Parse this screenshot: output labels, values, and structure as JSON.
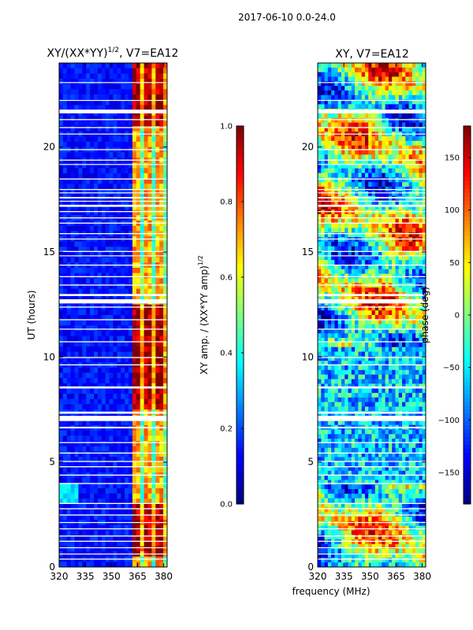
{
  "suptitle": "2017-06-10 0.0-24.0",
  "xlabel_shared": "frequency (MHz)",
  "colors": {
    "jet": [
      "#00007f",
      "#0000ff",
      "#007fff",
      "#00ffff",
      "#7fff7f",
      "#ffff00",
      "#ff7f00",
      "#ff0000",
      "#7f0000"
    ],
    "gap": "#ffffff",
    "axis": "#000000"
  },
  "chart_data": [
    {
      "type": "heatmap",
      "title_main": "XY/(XX*YY)",
      "title_exp": "1/2",
      "title_suffix": ", V7=EA12",
      "xlabel": "",
      "ylabel": "UT (hours)",
      "xlim": [
        320,
        382
      ],
      "ylim": [
        0,
        24
      ],
      "xticks": [
        320,
        335,
        350,
        365,
        380
      ],
      "yticks": [
        0,
        5,
        10,
        15,
        20
      ],
      "colorbar": {
        "label_main": "XY amp. / (XX*YY amp)",
        "label_exp": "1/2",
        "range": [
          0,
          1
        ],
        "ticks": [
          "0.0",
          "0.2",
          "0.4",
          "0.6",
          "0.8",
          "1.0"
        ]
      }
    },
    {
      "type": "heatmap",
      "title": "XY, V7=EA12",
      "xlabel": "",
      "ylabel": "",
      "xlim": [
        320,
        382
      ],
      "ylim": [
        0,
        24
      ],
      "xticks": [
        320,
        335,
        350,
        365,
        380
      ],
      "yticks": [
        0,
        5,
        10,
        15,
        20
      ],
      "colorbar": {
        "label": "phase (deg)",
        "range": [
          -180,
          180
        ],
        "ticks": [
          "-150",
          "-100",
          "-50",
          "0",
          "50",
          "100",
          "150"
        ]
      }
    }
  ]
}
